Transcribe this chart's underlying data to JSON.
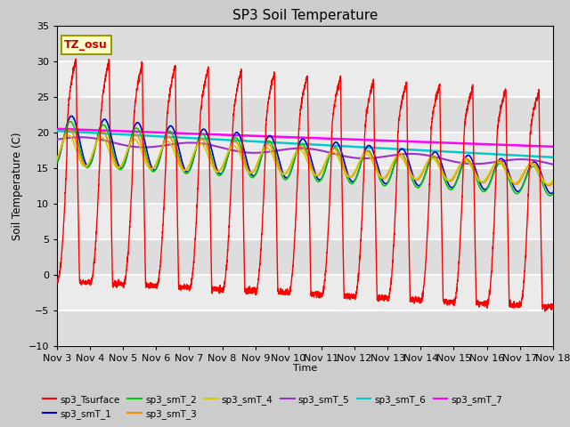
{
  "title": "SP3 Soil Temperature",
  "xlabel": "Time",
  "ylabel": "Soil Temperature (C)",
  "ylim": [
    -10,
    35
  ],
  "xlim": [
    0,
    15
  ],
  "x_tick_labels": [
    "Nov 3",
    "Nov 4",
    "Nov 5",
    "Nov 6",
    "Nov 7",
    "Nov 8",
    "Nov 9",
    "Nov 10",
    "Nov 11",
    "Nov 12",
    "Nov 13",
    "Nov 14",
    "Nov 15",
    "Nov 16",
    "Nov 17",
    "Nov 18"
  ],
  "annotation_text": "TZ_osu",
  "annotation_box_facecolor": "#FFFFCC",
  "annotation_text_color": "#CC0000",
  "annotation_border_color": "#999900",
  "fig_facecolor": "#CCCCCC",
  "ax_facecolor": "#E8E8E8",
  "grid_color": "#FFFFFF",
  "series_colors": {
    "sp3_Tsurface": "#FF0000",
    "sp3_smT_1": "#0000CC",
    "sp3_smT_2": "#00CC00",
    "sp3_smT_3": "#FF8800",
    "sp3_smT_4": "#CCCC00",
    "sp3_smT_5": "#9933CC",
    "sp3_smT_6": "#00CCCC",
    "sp3_smT_7": "#FF00FF"
  }
}
